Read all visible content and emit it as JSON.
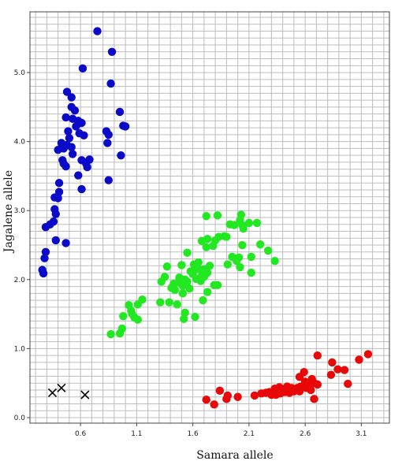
{
  "chart_data": {
    "type": "scatter",
    "title": "",
    "xlabel": "Samara allele",
    "ylabel": "Jagalene allele",
    "xlim": [
      0.15,
      3.35
    ],
    "ylim": [
      -0.08,
      5.88
    ],
    "xticks": [
      0.6,
      1.1,
      1.6,
      2.1,
      2.6,
      3.1
    ],
    "xtick_labels": [
      "0.6",
      "1.1",
      "1.6",
      "2.1",
      "2.6",
      "3.1"
    ],
    "yticks": [
      0.0,
      1.0,
      2.0,
      3.0,
      4.0,
      5.0
    ],
    "ytick_labels": [
      "0.0",
      "1.0",
      "2.0",
      "3.0",
      "4.0",
      "5.0"
    ],
    "grid": true,
    "grid_step_x": 0.1,
    "grid_step_y": 0.1,
    "legend": "none",
    "series": [
      {
        "color": "#0a0ac8",
        "marker": "circle",
        "points": [
          [
            0.75,
            5.6
          ],
          [
            0.88,
            5.3
          ],
          [
            0.62,
            5.06
          ],
          [
            0.87,
            4.84
          ],
          [
            0.48,
            4.72
          ],
          [
            0.52,
            4.64
          ],
          [
            0.95,
            4.43
          ],
          [
            0.98,
            4.23
          ],
          [
            1.0,
            4.22
          ],
          [
            0.52,
            4.5
          ],
          [
            0.55,
            4.45
          ],
          [
            0.47,
            4.35
          ],
          [
            0.53,
            4.33
          ],
          [
            0.58,
            4.3
          ],
          [
            0.61,
            4.27
          ],
          [
            0.56,
            4.22
          ],
          [
            0.49,
            4.15
          ],
          [
            0.59,
            4.12
          ],
          [
            0.63,
            4.09
          ],
          [
            0.83,
            4.15
          ],
          [
            0.85,
            4.1
          ],
          [
            0.5,
            4.05
          ],
          [
            0.43,
            3.98
          ],
          [
            0.48,
            3.95
          ],
          [
            0.52,
            3.92
          ],
          [
            0.45,
            3.9
          ],
          [
            0.4,
            3.88
          ],
          [
            0.84,
            3.98
          ],
          [
            0.96,
            3.8
          ],
          [
            0.53,
            3.82
          ],
          [
            0.44,
            3.73
          ],
          [
            0.45,
            3.68
          ],
          [
            0.47,
            3.64
          ],
          [
            0.61,
            3.73
          ],
          [
            0.65,
            3.68
          ],
          [
            0.68,
            3.74
          ],
          [
            0.66,
            3.63
          ],
          [
            0.58,
            3.51
          ],
          [
            0.85,
            3.44
          ],
          [
            0.41,
            3.4
          ],
          [
            0.61,
            3.31
          ],
          [
            0.41,
            3.27
          ],
          [
            0.4,
            3.18
          ],
          [
            0.37,
            3.19
          ],
          [
            0.37,
            3.02
          ],
          [
            0.38,
            2.95
          ],
          [
            0.36,
            2.84
          ],
          [
            0.33,
            2.8
          ],
          [
            0.29,
            2.76
          ],
          [
            0.38,
            2.57
          ],
          [
            0.47,
            2.53
          ],
          [
            0.29,
            2.4
          ],
          [
            0.28,
            2.31
          ],
          [
            0.26,
            2.14
          ],
          [
            0.27,
            2.09
          ]
        ]
      },
      {
        "color": "#22e822",
        "marker": "circle",
        "points": [
          [
            1.72,
            2.92
          ],
          [
            1.82,
            2.93
          ],
          [
            2.03,
            2.94
          ],
          [
            2.02,
            2.86
          ],
          [
            1.93,
            2.8
          ],
          [
            1.97,
            2.79
          ],
          [
            2.04,
            2.79
          ],
          [
            2.1,
            2.82
          ],
          [
            2.05,
            2.74
          ],
          [
            2.17,
            2.82
          ],
          [
            1.83,
            2.62
          ],
          [
            1.88,
            2.63
          ],
          [
            1.73,
            2.59
          ],
          [
            1.8,
            2.57
          ],
          [
            1.68,
            2.56
          ],
          [
            1.72,
            2.47
          ],
          [
            1.78,
            2.49
          ],
          [
            1.9,
            2.62
          ],
          [
            2.12,
            2.33
          ],
          [
            2.2,
            2.51
          ],
          [
            2.27,
            2.42
          ],
          [
            2.33,
            2.27
          ],
          [
            2.04,
            2.5
          ],
          [
            1.95,
            2.33
          ],
          [
            2.01,
            2.32
          ],
          [
            1.99,
            2.27
          ],
          [
            1.91,
            2.22
          ],
          [
            2.02,
            2.18
          ],
          [
            1.5,
            2.21
          ],
          [
            1.55,
            2.39
          ],
          [
            1.61,
            2.22
          ],
          [
            1.63,
            2.18
          ],
          [
            1.65,
            2.15
          ],
          [
            1.7,
            2.15
          ],
          [
            1.73,
            2.1
          ],
          [
            1.6,
            2.08
          ],
          [
            1.68,
            2.06
          ],
          [
            1.7,
            2.04
          ],
          [
            1.75,
            2.2
          ],
          [
            1.65,
            2.25
          ],
          [
            1.58,
            2.12
          ],
          [
            1.63,
            2.01
          ],
          [
            1.67,
            1.98
          ],
          [
            1.53,
            2.0
          ],
          [
            1.48,
            2.03
          ],
          [
            1.55,
            1.97
          ],
          [
            1.37,
            2.19
          ],
          [
            1.32,
            1.97
          ],
          [
            1.35,
            2.04
          ],
          [
            1.43,
            1.94
          ],
          [
            1.47,
            1.96
          ],
          [
            1.51,
            1.91
          ],
          [
            1.44,
            1.85
          ],
          [
            1.41,
            1.88
          ],
          [
            1.57,
            1.87
          ],
          [
            1.73,
            1.82
          ],
          [
            1.79,
            1.92
          ],
          [
            1.82,
            1.92
          ],
          [
            2.12,
            2.1
          ],
          [
            1.69,
            1.7
          ],
          [
            1.51,
            1.8
          ],
          [
            1.46,
            1.64
          ],
          [
            1.39,
            1.67
          ],
          [
            1.31,
            1.67
          ],
          [
            1.15,
            1.71
          ],
          [
            1.11,
            1.64
          ],
          [
            1.03,
            1.63
          ],
          [
            1.05,
            1.55
          ],
          [
            1.06,
            1.5
          ],
          [
            1.08,
            1.45
          ],
          [
            1.11,
            1.42
          ],
          [
            0.98,
            1.47
          ],
          [
            1.53,
            1.52
          ],
          [
            1.52,
            1.43
          ],
          [
            1.62,
            1.46
          ],
          [
            0.97,
            1.29
          ],
          [
            0.95,
            1.22
          ],
          [
            0.87,
            1.21
          ]
        ]
      },
      {
        "color": "#e80808",
        "marker": "circle",
        "points": [
          [
            3.16,
            0.92
          ],
          [
            3.08,
            0.84
          ],
          [
            2.71,
            0.9
          ],
          [
            2.84,
            0.8
          ],
          [
            2.89,
            0.7
          ],
          [
            2.95,
            0.69
          ],
          [
            2.83,
            0.62
          ],
          [
            2.98,
            0.49
          ],
          [
            2.59,
            0.66
          ],
          [
            2.55,
            0.59
          ],
          [
            2.66,
            0.56
          ],
          [
            2.6,
            0.52
          ],
          [
            2.68,
            0.5
          ],
          [
            2.71,
            0.48
          ],
          [
            2.63,
            0.47
          ],
          [
            2.56,
            0.45
          ],
          [
            2.61,
            0.43
          ],
          [
            2.53,
            0.43
          ],
          [
            2.48,
            0.43
          ],
          [
            2.44,
            0.45
          ],
          [
            2.4,
            0.41
          ],
          [
            2.37,
            0.44
          ],
          [
            2.33,
            0.42
          ],
          [
            2.5,
            0.38
          ],
          [
            2.46,
            0.36
          ],
          [
            2.42,
            0.37
          ],
          [
            2.38,
            0.35
          ],
          [
            2.34,
            0.33
          ],
          [
            2.3,
            0.33
          ],
          [
            2.28,
            0.37
          ],
          [
            2.25,
            0.36
          ],
          [
            2.21,
            0.35
          ],
          [
            2.15,
            0.32
          ],
          [
            2.55,
            0.38
          ],
          [
            2.65,
            0.4
          ],
          [
            2.68,
            0.27
          ],
          [
            1.84,
            0.39
          ],
          [
            1.91,
            0.32
          ],
          [
            2.0,
            0.3
          ],
          [
            1.9,
            0.27
          ],
          [
            1.72,
            0.26
          ],
          [
            1.79,
            0.19
          ]
        ]
      },
      {
        "color": "#000000",
        "marker": "x",
        "points": [
          [
            0.35,
            0.36
          ],
          [
            0.43,
            0.43
          ],
          [
            0.64,
            0.33
          ]
        ]
      }
    ]
  }
}
